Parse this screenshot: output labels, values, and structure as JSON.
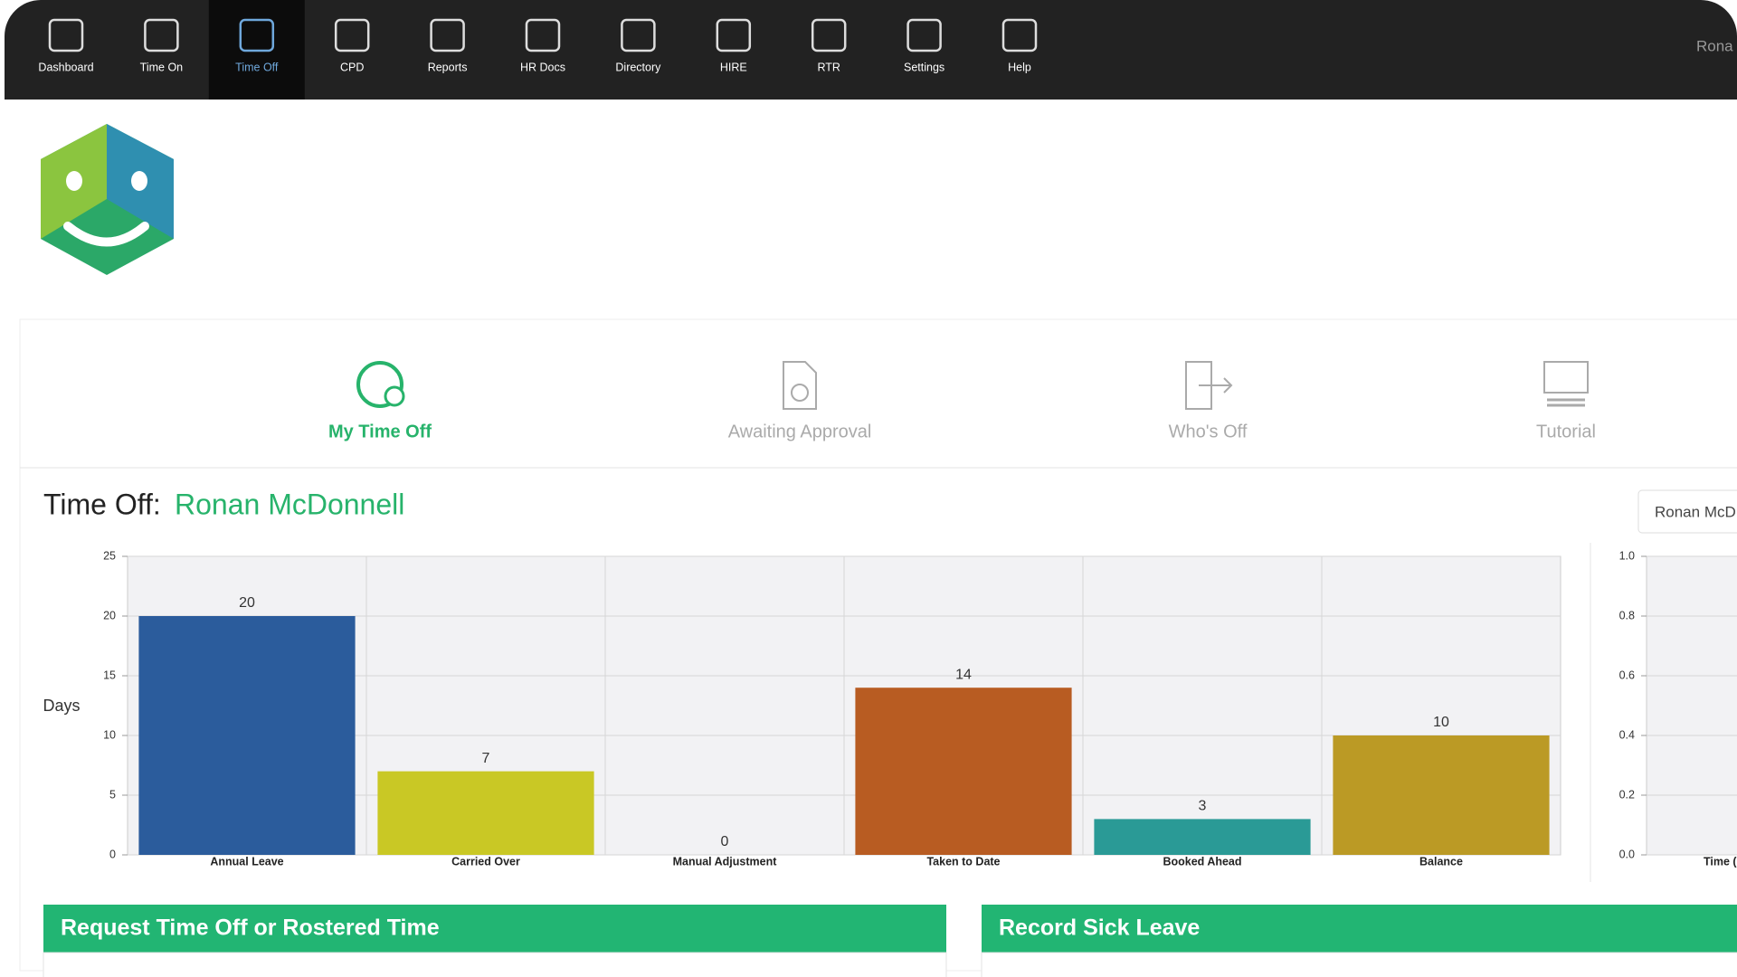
{
  "nav": {
    "items": [
      "Dashboard",
      "Time On",
      "Time Off",
      "CPD",
      "Reports",
      "HR Docs",
      "Directory",
      "HIRE",
      "RTR",
      "Settings",
      "Help"
    ],
    "active": "Time Off",
    "user": "Rona"
  },
  "tabs": [
    "My Time Off",
    "Awaiting Approval",
    "Who's Off",
    "Tutorial"
  ],
  "heading": {
    "prefix": "Time Off:",
    "name": "Ronan McDonnell"
  },
  "user_select": "Ronan McD",
  "chart_data": [
    {
      "type": "bar",
      "y_label": "Days",
      "categories": [
        "Annual Leave",
        "Carried Over",
        "Manual Adjustment",
        "Taken to Date",
        "Booked Ahead",
        "Balance"
      ],
      "values": [
        20,
        7,
        0,
        14,
        3,
        10
      ],
      "colors": [
        "#2b5c9c",
        "#c9c825",
        "#888888",
        "#b85c22",
        "#2a9a96",
        "#bb9a25"
      ],
      "ylim": [
        0,
        25
      ],
      "yticks": [
        0,
        5,
        10,
        15,
        20,
        25
      ],
      "grid": true
    },
    {
      "type": "bar",
      "categories": [
        "Time ("
      ],
      "values": [
        0
      ],
      "colors": [
        "#2b5c9c"
      ],
      "ylim": [
        0,
        1
      ],
      "yticks": [
        {
          "value": 0,
          "label": "0.0"
        },
        {
          "value": 0.2,
          "label": "0.2"
        },
        {
          "value": 0.4,
          "label": "0.4"
        },
        {
          "value": 0.6,
          "label": "0.6"
        },
        {
          "value": 0.8,
          "label": "0.8"
        },
        {
          "value": 1,
          "label": "1.0"
        }
      ],
      "grid": true
    }
  ],
  "panels": [
    "Request Time Off or Rostered Time",
    "Record Sick Leave"
  ]
}
